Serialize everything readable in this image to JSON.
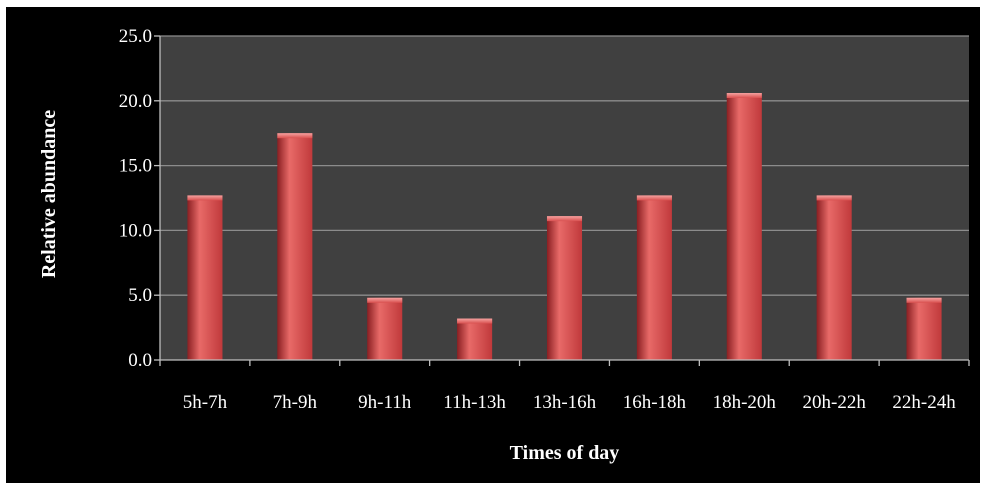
{
  "chart_data": {
    "type": "bar",
    "title": "",
    "xlabel": "Times of day",
    "ylabel": "Relative abundance",
    "categories": [
      "5h-7h",
      "7h-9h",
      "9h-11h",
      "11h-13h",
      "13h-16h",
      "16h-18h",
      "18h-20h",
      "20h-22h",
      "22h-24h"
    ],
    "values": [
      12.7,
      17.5,
      4.8,
      3.2,
      11.1,
      12.7,
      20.6,
      12.7,
      4.8
    ],
    "ylim": [
      0,
      25
    ],
    "yticks": [
      "0.0",
      "5.0",
      "10.0",
      "15.0",
      "20.0",
      "25.0"
    ],
    "grid": true,
    "legend": "none",
    "colors": {
      "background": "#000000",
      "plot_area": "#404040",
      "gridline": "#8c8c8c",
      "bar": "#c0393b",
      "bar_highlight": "#e86a68",
      "bar_shadow": "#8a1f22",
      "text": "#ffffff"
    }
  }
}
